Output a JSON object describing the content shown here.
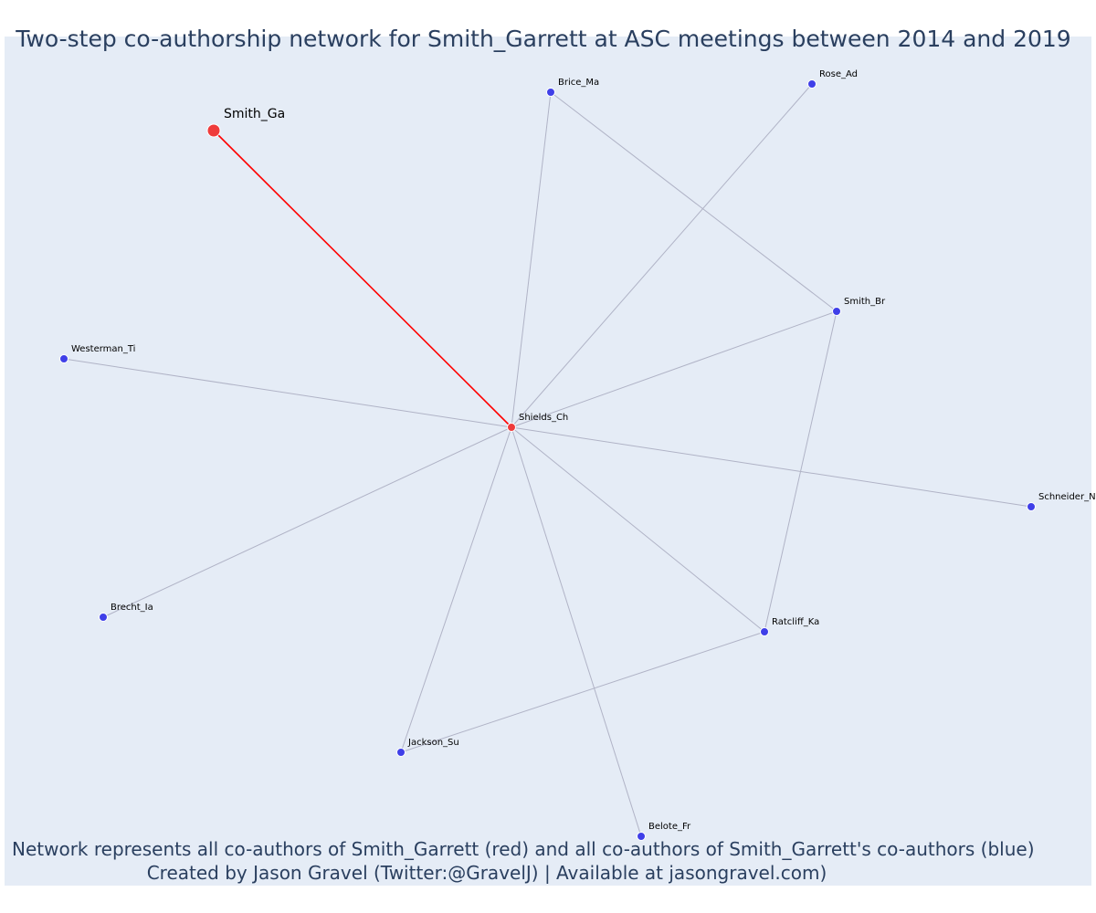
{
  "title": "Two-step co-authorship network for Smith_Garrett at ASC meetings between 2014 and 2019",
  "caption": {
    "line1": "Network represents all co-authors of Smith_Garrett (red) and all co-authors of Smith_Garrett's co-authors (blue)",
    "line2": "Created by Jason Gravel (Twitter:@GravelJ) | Available at jasongravel.com)"
  },
  "colors": {
    "background": "#e5ecf6",
    "focal_node": "#ef3b3b",
    "first_degree_node": "#ef3b3b",
    "second_degree_node": "#3f3fe8",
    "focal_edge": "#ff0000",
    "edge": "#b0b3c6",
    "text": "#2a3f5f"
  },
  "network": {
    "nodes": [
      {
        "id": "Smith_Ga",
        "label": "Smith_Ga",
        "group": "focal"
      },
      {
        "id": "Shields_Ch",
        "label": "Shields_Ch",
        "group": "first"
      },
      {
        "id": "Brice_Ma",
        "label": "Brice_Ma",
        "group": "second"
      },
      {
        "id": "Rose_Ad",
        "label": "Rose_Ad",
        "group": "second"
      },
      {
        "id": "Smith_Br",
        "label": "Smith_Br",
        "group": "second"
      },
      {
        "id": "Westerman_Ti",
        "label": "Westerman_Ti",
        "group": "second"
      },
      {
        "id": "Schneider_N",
        "label": "Schneider_N",
        "group": "second"
      },
      {
        "id": "Brecht_Ia",
        "label": "Brecht_Ia",
        "group": "second"
      },
      {
        "id": "Ratcliff_Ka",
        "label": "Ratcliff_Ka",
        "group": "second"
      },
      {
        "id": "Jackson_Su",
        "label": "Jackson_Su",
        "group": "second"
      },
      {
        "id": "Belote_Fr",
        "label": "Belote_Fr",
        "group": "second"
      }
    ],
    "edges": [
      {
        "source": "Smith_Ga",
        "target": "Shields_Ch",
        "focal": true
      },
      {
        "source": "Shields_Ch",
        "target": "Brice_Ma"
      },
      {
        "source": "Shields_Ch",
        "target": "Rose_Ad"
      },
      {
        "source": "Shields_Ch",
        "target": "Smith_Br"
      },
      {
        "source": "Shields_Ch",
        "target": "Westerman_Ti"
      },
      {
        "source": "Shields_Ch",
        "target": "Schneider_N"
      },
      {
        "source": "Shields_Ch",
        "target": "Brecht_Ia"
      },
      {
        "source": "Shields_Ch",
        "target": "Ratcliff_Ka"
      },
      {
        "source": "Shields_Ch",
        "target": "Jackson_Su"
      },
      {
        "source": "Shields_Ch",
        "target": "Belote_Fr"
      },
      {
        "source": "Brice_Ma",
        "target": "Smith_Br"
      },
      {
        "source": "Smith_Br",
        "target": "Ratcliff_Ka"
      },
      {
        "source": "Ratcliff_Ka",
        "target": "Jackson_Su"
      }
    ]
  }
}
